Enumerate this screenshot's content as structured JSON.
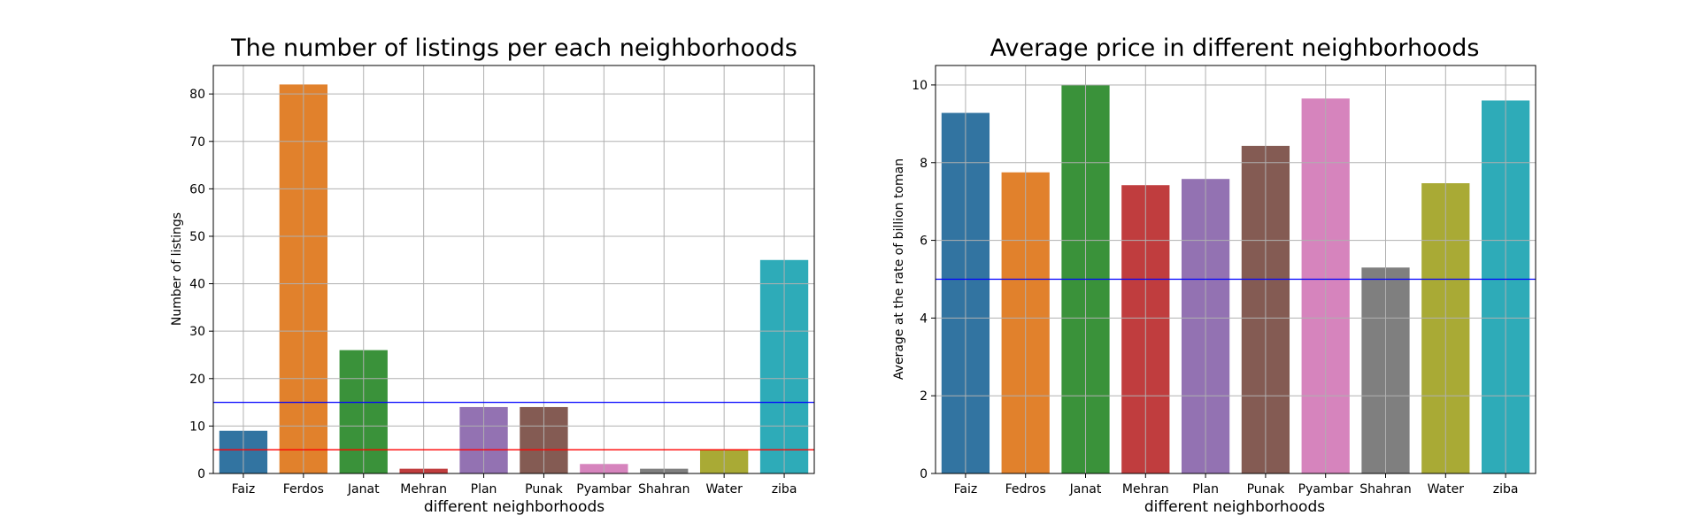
{
  "chart_data": [
    {
      "type": "bar",
      "title": "The number of listings per each neighborhoods",
      "xlabel": "different neighborhoods",
      "ylabel": "Number of listings",
      "categories": [
        "Faiz",
        "Ferdos",
        "Janat",
        "Mehran",
        "Plan",
        "Punak",
        "Pyambar",
        "Shahran",
        "Water",
        "ziba"
      ],
      "values": [
        9,
        82,
        26,
        1,
        14,
        14,
        2,
        1,
        5,
        45
      ],
      "colors": [
        "#3274a1",
        "#e1812c",
        "#3a923a",
        "#c03d3e",
        "#9372b2",
        "#845b53",
        "#d684bd",
        "#7f7f7f",
        "#a9aa35",
        "#2eabb8"
      ],
      "ylim": [
        0,
        86
      ],
      "yticks": [
        0,
        10,
        20,
        30,
        40,
        50,
        60,
        70,
        80
      ],
      "hlines": [
        {
          "value": 15,
          "color": "#0000ff"
        },
        {
          "value": 5,
          "color": "#ff0000"
        }
      ],
      "grid": true
    },
    {
      "type": "bar",
      "title": "Average price in different neighborhoods",
      "xlabel": "different neighborhoods",
      "ylabel": "Average at the rate of billion toman",
      "categories": [
        "Faiz",
        "Fedros",
        "Janat",
        "Mehran",
        "Plan",
        "Punak",
        "Pyambar",
        "Shahran",
        "Water",
        "ziba"
      ],
      "values": [
        9.28,
        7.75,
        10.0,
        7.42,
        7.58,
        8.43,
        9.65,
        5.3,
        7.47,
        9.6
      ],
      "colors": [
        "#3274a1",
        "#e1812c",
        "#3a923a",
        "#c03d3e",
        "#9372b2",
        "#845b53",
        "#d684bd",
        "#7f7f7f",
        "#a9aa35",
        "#2eabb8"
      ],
      "ylim": [
        0,
        10.5
      ],
      "yticks": [
        0,
        2,
        4,
        6,
        8,
        10
      ],
      "hlines": [
        {
          "value": 5,
          "color": "#0000ff"
        }
      ],
      "grid": true
    }
  ]
}
